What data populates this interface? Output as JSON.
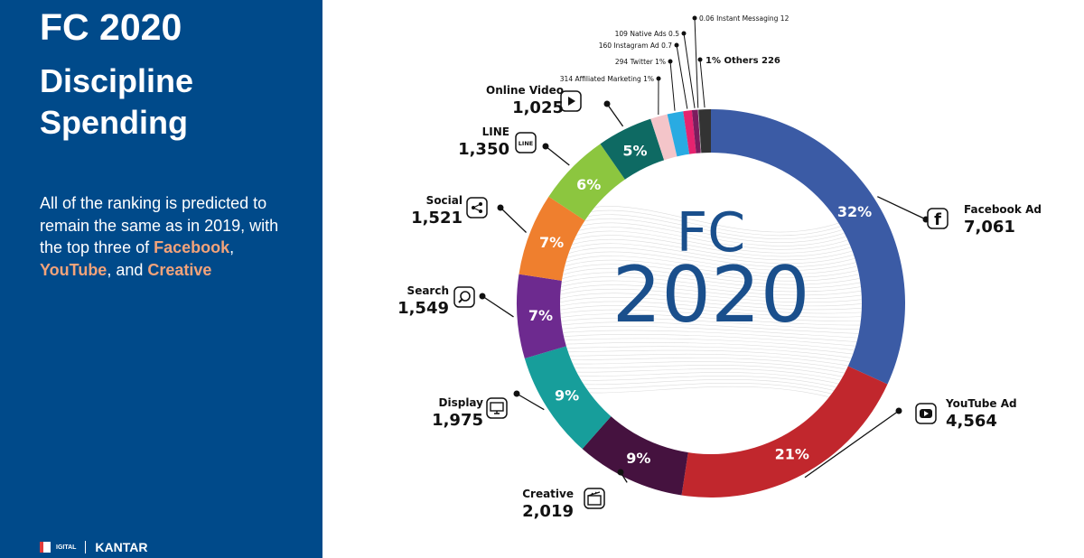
{
  "left": {
    "title": "FC 2020",
    "subtitle_line1": "Discipline",
    "subtitle_line2": "Spending",
    "desc_part1": "All of the ranking is predicted to remain the same as in 2019, with the top three of ",
    "desc_hl1": "Facebook",
    "desc_part2": ", ",
    "desc_hl2": "YouTube",
    "desc_part3": ", and ",
    "desc_hl3": "Creative",
    "footer_logo": "IGITAL",
    "footer_brand": "KANTAR",
    "colors": {
      "panel": "#004a8a",
      "highlight": "#f3a37a"
    }
  },
  "chart_data": {
    "type": "pie",
    "variant": "donut",
    "center_label_line1": "FC",
    "center_label_line2": "2020",
    "series": [
      {
        "name": "Facebook Ad",
        "value": 7061,
        "display_value": "7,061",
        "pct": "32%",
        "color": "#3b5ba5",
        "icon": "facebook-icon"
      },
      {
        "name": "YouTube Ad",
        "value": 4564,
        "display_value": "4,564",
        "pct": "21%",
        "color": "#c1272d",
        "icon": "youtube-icon"
      },
      {
        "name": "Creative",
        "value": 2019,
        "display_value": "2,019",
        "pct": "9%",
        "color": "#45123f",
        "icon": "clapperboard-icon"
      },
      {
        "name": "Display",
        "value": 1975,
        "display_value": "1,975",
        "pct": "9%",
        "color": "#179e9b",
        "icon": "monitor-icon"
      },
      {
        "name": "Search",
        "value": 1549,
        "display_value": "1,549",
        "pct": "7%",
        "color": "#6d2a8f",
        "icon": "search-icon"
      },
      {
        "name": "Social",
        "value": 1521,
        "display_value": "1,521",
        "pct": "7%",
        "color": "#ef7f2e",
        "icon": "share-icon"
      },
      {
        "name": "LINE",
        "value": 1350,
        "display_value": "1,350",
        "pct": "6%",
        "color": "#8cc63f",
        "icon": "line-icon"
      },
      {
        "name": "Online Video",
        "value": 1025,
        "display_value": "1,025",
        "pct": "5%",
        "color": "#0e6a63",
        "icon": "play-icon"
      },
      {
        "name": "Affiliated Marketing",
        "value": 314,
        "display_value": "314",
        "pct": "1%",
        "color": "#f4c5c9",
        "icon": ""
      },
      {
        "name": "Twitter",
        "value": 294,
        "display_value": "294",
        "pct": "1%",
        "color": "#29abe2",
        "icon": ""
      },
      {
        "name": "Instagram Ad",
        "value": 160,
        "display_value": "160",
        "pct": "0.7",
        "color": "#e6236f",
        "icon": ""
      },
      {
        "name": "Native Ads",
        "value": 109,
        "display_value": "109",
        "pct": "0.5",
        "color": "#7b1c5e",
        "icon": ""
      },
      {
        "name": "Instant Messaging",
        "value": 12,
        "display_value": "12",
        "pct": "0.06",
        "color": "#9e9e9e",
        "icon": ""
      },
      {
        "name": "Others",
        "value": 226,
        "display_value": "226",
        "pct": "1%",
        "color": "#333333",
        "icon": ""
      }
    ]
  }
}
